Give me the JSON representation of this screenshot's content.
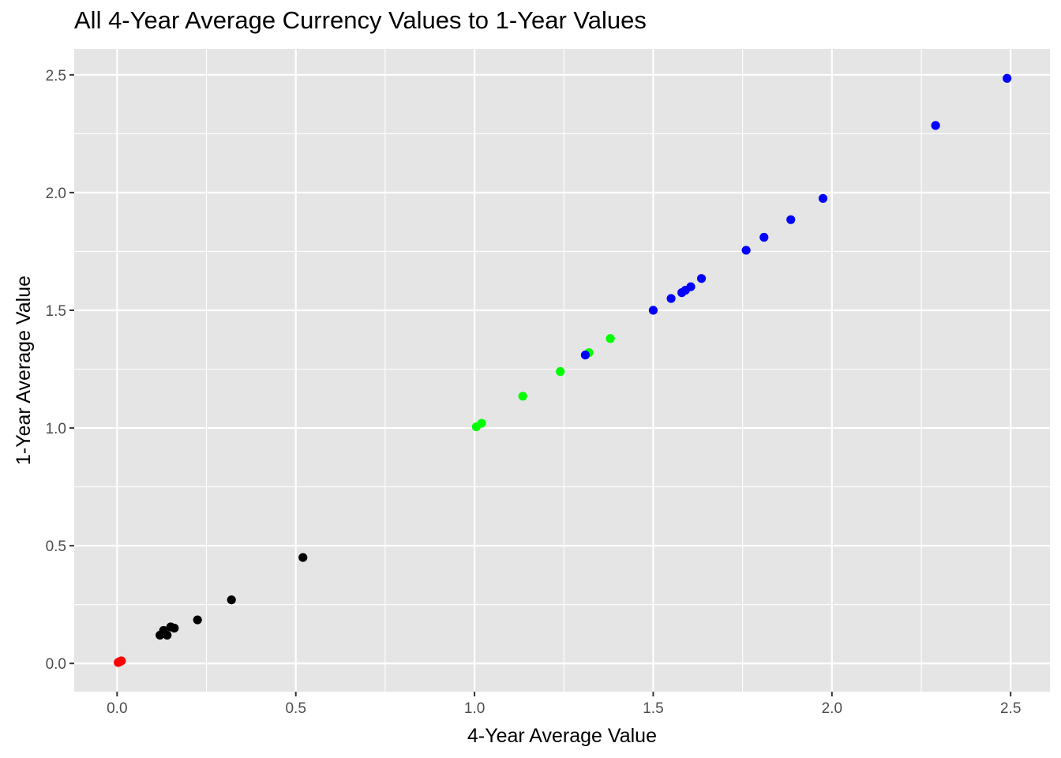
{
  "chart_data": {
    "type": "scatter",
    "title": "All 4-Year Average Currency Values to 1-Year Values",
    "xlabel": "4-Year Average Value",
    "ylabel": "1-Year Average Value",
    "xlim": [
      -0.12,
      2.61
    ],
    "ylim": [
      -0.12,
      2.61
    ],
    "x_ticks": [
      0.0,
      0.5,
      1.0,
      1.5,
      2.0,
      2.5
    ],
    "x_tick_labels": [
      "0.0",
      "0.5",
      "1.0",
      "1.5",
      "2.0",
      "2.5"
    ],
    "y_ticks": [
      0.0,
      0.5,
      1.0,
      1.5,
      2.0,
      2.5
    ],
    "y_tick_labels": [
      "0.0",
      "0.5",
      "1.0",
      "1.5",
      "2.0",
      "2.5"
    ],
    "grid": true,
    "legend": "none",
    "colors": {
      "panel_background": "#e5e5e5",
      "grid_line": "#ffffff",
      "black_group": "#000000",
      "red_group": "#ff0000",
      "green_group": "#00ff00",
      "blue_group": "#0000ff"
    },
    "series": [
      {
        "color": "#ff0000",
        "points": [
          [
            0.003,
            0.004
          ],
          [
            0.006,
            0.006
          ],
          [
            0.008,
            0.008
          ],
          [
            0.01,
            0.009
          ],
          [
            0.012,
            0.011
          ]
        ]
      },
      {
        "color": "#000000",
        "points": [
          [
            0.12,
            0.12
          ],
          [
            0.13,
            0.14
          ],
          [
            0.14,
            0.12
          ],
          [
            0.15,
            0.155
          ],
          [
            0.16,
            0.15
          ],
          [
            0.225,
            0.185
          ],
          [
            0.32,
            0.27
          ],
          [
            0.52,
            0.45
          ]
        ]
      },
      {
        "color": "#00ff00",
        "points": [
          [
            1.005,
            1.005
          ],
          [
            1.02,
            1.02
          ],
          [
            1.135,
            1.135
          ],
          [
            1.24,
            1.24
          ],
          [
            1.32,
            1.32
          ],
          [
            1.38,
            1.38
          ]
        ]
      },
      {
        "color": "#0000ff",
        "points": [
          [
            1.31,
            1.31
          ],
          [
            1.5,
            1.5
          ],
          [
            1.55,
            1.55
          ],
          [
            1.58,
            1.575
          ],
          [
            1.59,
            1.585
          ],
          [
            1.605,
            1.6
          ],
          [
            1.635,
            1.635
          ],
          [
            1.76,
            1.755
          ],
          [
            1.81,
            1.81
          ],
          [
            1.885,
            1.885
          ],
          [
            1.975,
            1.975
          ],
          [
            2.29,
            2.285
          ],
          [
            2.49,
            2.485
          ]
        ]
      }
    ]
  }
}
